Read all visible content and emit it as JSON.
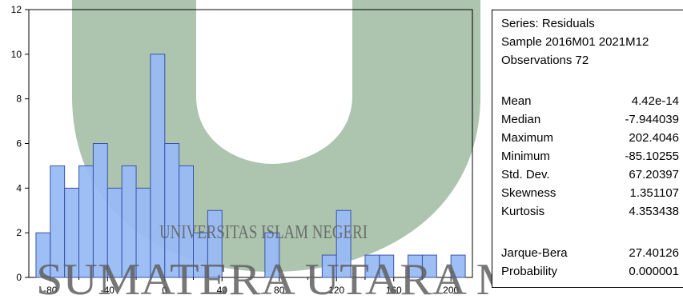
{
  "chart_data": {
    "type": "bar",
    "bins": [
      {
        "from": -90,
        "to": -80,
        "count": 2
      },
      {
        "from": -80,
        "to": -70,
        "count": 5
      },
      {
        "from": -70,
        "to": -60,
        "count": 4
      },
      {
        "from": -60,
        "to": -50,
        "count": 5
      },
      {
        "from": -50,
        "to": -40,
        "count": 6
      },
      {
        "from": -40,
        "to": -30,
        "count": 4
      },
      {
        "from": -30,
        "to": -20,
        "count": 5
      },
      {
        "from": -20,
        "to": -10,
        "count": 4
      },
      {
        "from": -10,
        "to": 0,
        "count": 10
      },
      {
        "from": 0,
        "to": 10,
        "count": 6
      },
      {
        "from": 10,
        "to": 20,
        "count": 5
      },
      {
        "from": 20,
        "to": 30,
        "count": 2
      },
      {
        "from": 30,
        "to": 40,
        "count": 3
      },
      {
        "from": 40,
        "to": 50,
        "count": 0
      },
      {
        "from": 50,
        "to": 60,
        "count": 0
      },
      {
        "from": 60,
        "to": 70,
        "count": 0
      },
      {
        "from": 70,
        "to": 80,
        "count": 2
      },
      {
        "from": 80,
        "to": 90,
        "count": 0
      },
      {
        "from": 90,
        "to": 100,
        "count": 0
      },
      {
        "from": 100,
        "to": 110,
        "count": 0
      },
      {
        "from": 110,
        "to": 120,
        "count": 1
      },
      {
        "from": 120,
        "to": 130,
        "count": 3
      },
      {
        "from": 130,
        "to": 140,
        "count": 0
      },
      {
        "from": 140,
        "to": 150,
        "count": 1
      },
      {
        "from": 150,
        "to": 160,
        "count": 1
      },
      {
        "from": 160,
        "to": 170,
        "count": 0
      },
      {
        "from": 170,
        "to": 180,
        "count": 1
      },
      {
        "from": 180,
        "to": 190,
        "count": 1
      },
      {
        "from": 190,
        "to": 200,
        "count": 0
      },
      {
        "from": 200,
        "to": 210,
        "count": 1
      }
    ],
    "xlim": [
      -95,
      215
    ],
    "ylim": [
      0,
      12
    ],
    "x_ticks": [
      -80,
      -40,
      0,
      40,
      80,
      120,
      160,
      200
    ],
    "y_ticks": [
      0,
      2,
      4,
      6,
      8,
      10,
      12
    ],
    "title": "",
    "xlabel": "",
    "ylabel": "",
    "grid": false,
    "bar_color": "#99bbf5",
    "bar_edge_color": "#3a55a8"
  },
  "stats": {
    "series": "Series: Residuals",
    "sample": "Sample 2016M01 2021M12",
    "observations": "Observations 72",
    "rows": [
      {
        "label": "Mean",
        "value": "4.42e-14"
      },
      {
        "label": "Median",
        "value": "-7.944039"
      },
      {
        "label": "Maximum",
        "value": "202.4046"
      },
      {
        "label": "Minimum",
        "value": "-85.10255"
      },
      {
        "label": "Std. Dev.",
        "value": "67.20397"
      },
      {
        "label": "Skewness",
        "value": "1.351107"
      },
      {
        "label": "Kurtosis",
        "value": "4.353438"
      }
    ],
    "test_rows": [
      {
        "label": "Jarque-Bera",
        "value": "27.40126"
      },
      {
        "label": "Probability",
        "value": "0.000001"
      }
    ]
  },
  "watermark": {
    "line1": "UNIVERSITAS ISLAM NEGERI",
    "line2": "SUMATERA UTARA MEDAN",
    "color": "#5b8a5f"
  }
}
